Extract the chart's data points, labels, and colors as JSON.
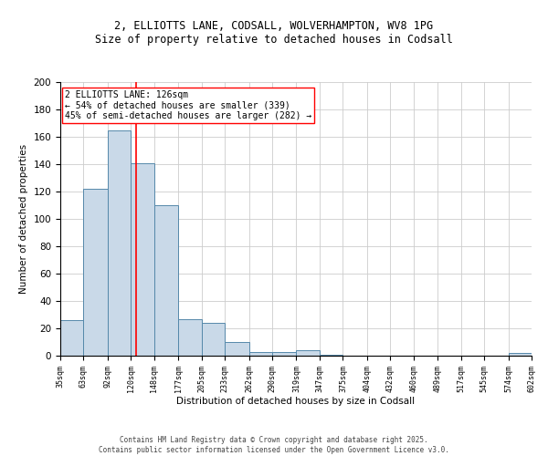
{
  "title_line1": "2, ELLIOTTS LANE, CODSALL, WOLVERHAMPTON, WV8 1PG",
  "title_line2": "Size of property relative to detached houses in Codsall",
  "xlabel": "Distribution of detached houses by size in Codsall",
  "ylabel": "Number of detached properties",
  "bar_edges": [
    35,
    63,
    92,
    120,
    148,
    177,
    205,
    233,
    262,
    290,
    319,
    347,
    375,
    404,
    432,
    460,
    489,
    517,
    545,
    574,
    602
  ],
  "bar_heights": [
    26,
    122,
    165,
    141,
    110,
    27,
    24,
    10,
    3,
    3,
    4,
    1,
    0,
    0,
    0,
    0,
    0,
    0,
    0,
    2
  ],
  "bar_color": "#c9d9e8",
  "bar_edgecolor": "#5588aa",
  "property_line_x": 126,
  "property_line_color": "red",
  "annotation_text": "2 ELLIOTTS LANE: 126sqm\n← 54% of detached houses are smaller (339)\n45% of semi-detached houses are larger (282) →",
  "ylim": [
    0,
    200
  ],
  "yticks": [
    0,
    20,
    40,
    60,
    80,
    100,
    120,
    140,
    160,
    180,
    200
  ],
  "background_color": "#ffffff",
  "grid_color": "#cccccc",
  "footer_text": "Contains HM Land Registry data © Crown copyright and database right 2025.\nContains public sector information licensed under the Open Government Licence v3.0.",
  "tick_labels": [
    "35sqm",
    "63sqm",
    "92sqm",
    "120sqm",
    "148sqm",
    "177sqm",
    "205sqm",
    "233sqm",
    "262sqm",
    "290sqm",
    "319sqm",
    "347sqm",
    "375sqm",
    "404sqm",
    "432sqm",
    "460sqm",
    "489sqm",
    "517sqm",
    "545sqm",
    "574sqm",
    "602sqm"
  ],
  "title_fontsize": 8.5,
  "ylabel_fontsize": 7.5,
  "xlabel_fontsize": 7.5,
  "ytick_fontsize": 7.5,
  "xtick_fontsize": 6,
  "annotation_fontsize": 7,
  "footer_fontsize": 5.5
}
